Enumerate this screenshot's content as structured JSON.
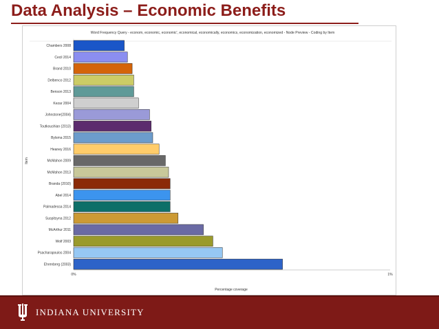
{
  "slide": {
    "title": "Data Analysis – Economic Benefits",
    "footer_text": "INDIANA UNIVERSITY"
  },
  "chart_data": {
    "type": "bar",
    "orientation": "horizontal",
    "title": "Word Frequency Query - econom, economic, economic', economical, economically, economics, economization, economized - Node Preview - Coding by Item",
    "xlabel": "Percentage coverage",
    "ylabel": "Item",
    "xlim": [
      0,
      1
    ],
    "x_tick_labels": [
      "0%",
      "1%"
    ],
    "grid": false,
    "legend": "none",
    "categories": [
      "Chambers 2008",
      "Cecil 2014",
      "Brand 2010",
      "Delbenco 2012",
      "Benson 2013",
      "Kezar 2004",
      "Johnstone(2004)",
      "Toutkoushian (2013)",
      "Bylsma 2015",
      "Heaney 2016",
      "McMahon 2009",
      "McMahon 2013",
      "Branda (2010)",
      "Abel 2014",
      "Palmadessa 2014",
      "Suspitsyna 2012",
      "McArthur 2011",
      "Wolf 2003",
      "Psacharapoulos 2004",
      "Ehrenberg (2003)"
    ],
    "values": [
      0.16,
      0.17,
      0.185,
      0.19,
      0.19,
      0.205,
      0.24,
      0.245,
      0.25,
      0.27,
      0.29,
      0.3,
      0.305,
      0.305,
      0.305,
      0.33,
      0.41,
      0.44,
      0.47,
      0.66
    ],
    "colors": [
      "#1a56c8",
      "#8b8ef0",
      "#d4640a",
      "#cccc66",
      "#5f9a98",
      "#cfcfcf",
      "#9a9ad8",
      "#5c2b6e",
      "#6c9ccc",
      "#ffcc6a",
      "#686868",
      "#c8c89a",
      "#8b2a07",
      "#3c94ee",
      "#0d6f68",
      "#cc9a34",
      "#6a6aa4",
      "#9a9a2c",
      "#96c8f4",
      "#2d63c8"
    ]
  }
}
